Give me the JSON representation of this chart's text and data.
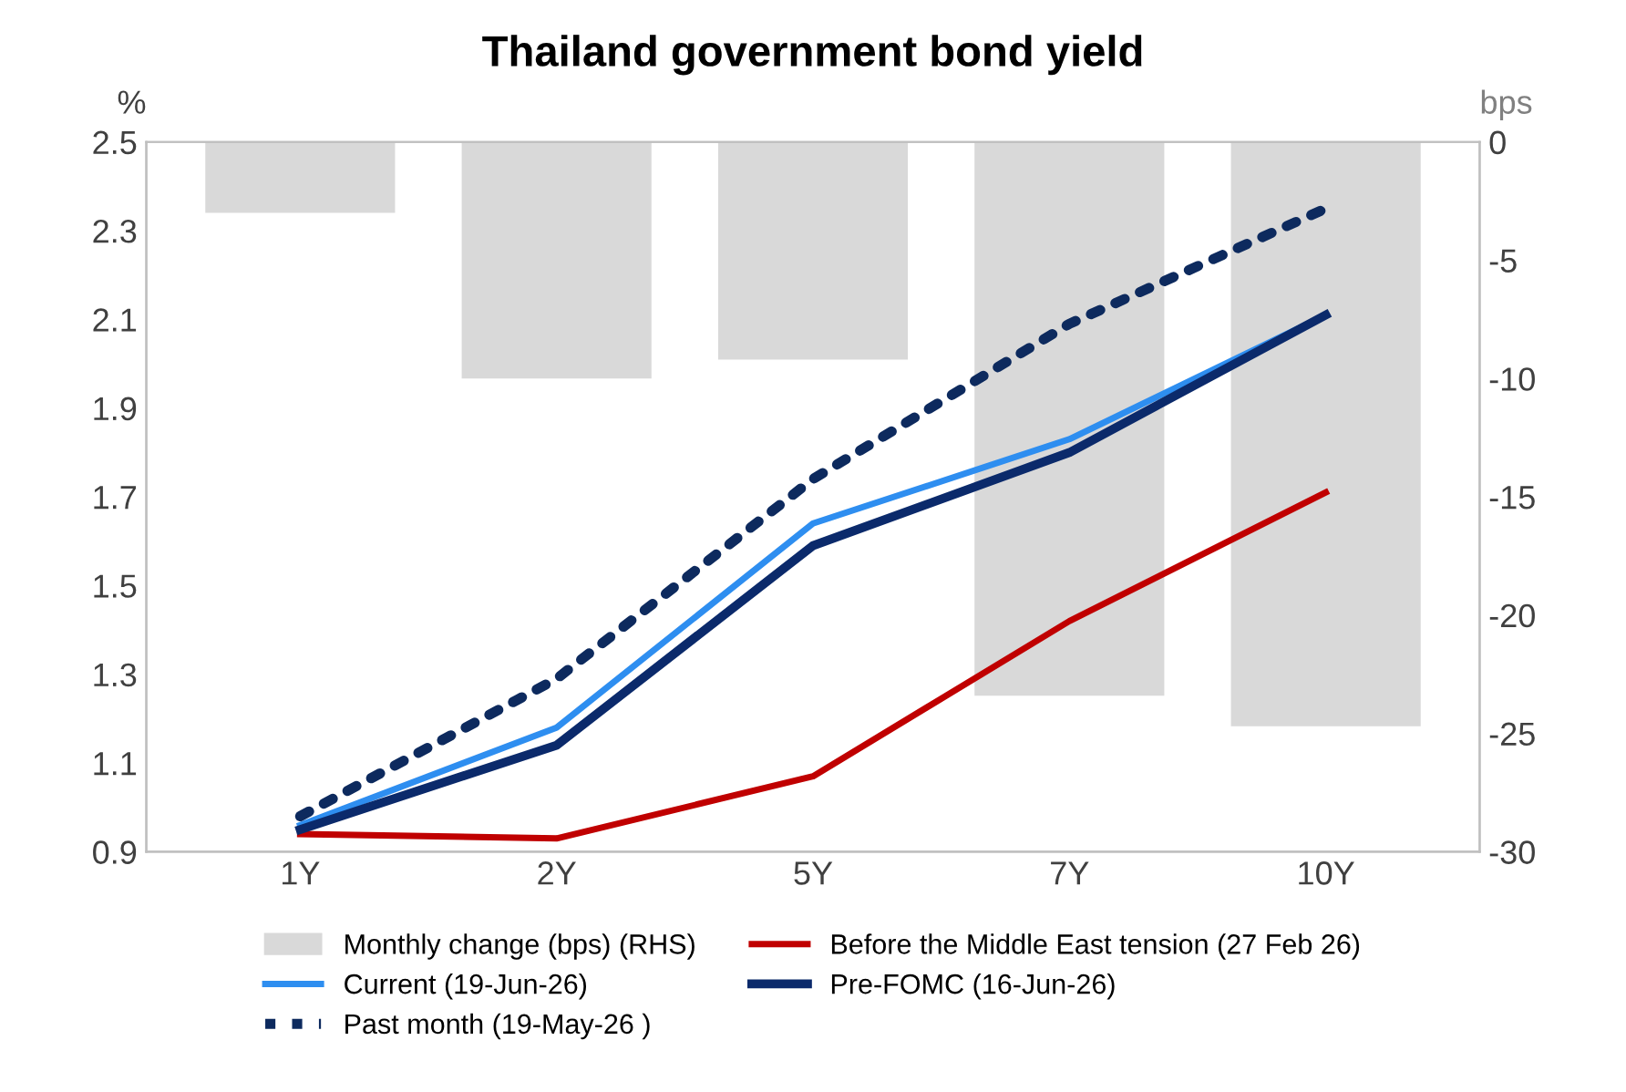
{
  "chart_data": {
    "type": "line",
    "title": "Thailand government bond yield",
    "ylabel": "%",
    "y2label": "bps",
    "categories": [
      "1Y",
      "2Y",
      "5Y",
      "7Y",
      "10Y"
    ],
    "series": [
      {
        "name": "Monthly change (bps) (RHS)",
        "type": "bar",
        "axis": "y2",
        "color": "#d9d9d9",
        "values": [
          -3.0,
          -10.0,
          -9.2,
          -23.4,
          -24.7
        ]
      },
      {
        "name": "Current (19-Jun-26)",
        "color": "#2e8ef0",
        "values": [
          0.96,
          1.18,
          1.64,
          1.83,
          2.11
        ],
        "line_style": "solid"
      },
      {
        "name": "Past month (19-May-26 )",
        "color": "#0d2a5e",
        "values": [
          0.98,
          1.29,
          1.74,
          2.09,
          2.35
        ],
        "line_style": "dotted"
      },
      {
        "name": "Before the Middle East tension (27 Feb 26)",
        "color": "#c00000",
        "values": [
          0.94,
          0.93,
          1.07,
          1.42,
          1.71
        ],
        "line_style": "solid"
      },
      {
        "name": "Pre-FOMC (16-Jun-26)",
        "color": "#0b2a6b",
        "values": [
          0.95,
          1.14,
          1.59,
          1.8,
          2.11
        ],
        "line_style": "solid"
      }
    ],
    "ylim": [
      0.9,
      2.5
    ],
    "yticks": [
      0.9,
      1.1,
      1.3,
      1.5,
      1.7,
      1.9,
      2.1,
      2.3,
      2.5
    ],
    "y2lim": [
      -30,
      0
    ],
    "y2ticks": [
      -30,
      -25,
      -20,
      -15,
      -10,
      -5,
      0
    ],
    "legend": "bottom",
    "grid": false
  }
}
